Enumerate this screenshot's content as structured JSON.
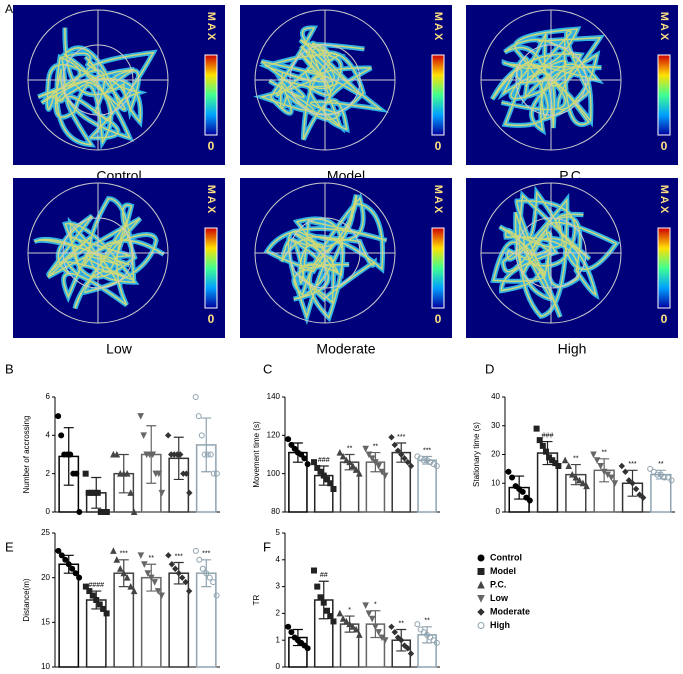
{
  "panel_labels": {
    "a": "A",
    "b": "B",
    "c": "C",
    "d": "D",
    "e": "E",
    "f": "F"
  },
  "heatmaps": {
    "labels": [
      "Control",
      "Model",
      "P.C.",
      "Low",
      "Moderate",
      "High"
    ],
    "colorbar": {
      "max": "MAX",
      "min": "0"
    }
  },
  "legend": {
    "items": [
      "Control",
      "Model",
      "P.C.",
      "Low",
      "Moderate",
      "High"
    ],
    "colors": [
      "#000000",
      "#222222",
      "#444444",
      "#666666",
      "#333333",
      "#8fa3b0"
    ]
  },
  "chart_data": [
    {
      "type": "bar",
      "ylabel": "Number of accrossing",
      "values": [
        2.9,
        1.0,
        2.0,
        3.0,
        2.8,
        3.5
      ],
      "errors": [
        1.5,
        0.8,
        1.0,
        1.5,
        1.1,
        1.4
      ],
      "points": [
        [
          5,
          4,
          3,
          3,
          3,
          2,
          2,
          0
        ],
        [
          2,
          1,
          1,
          1,
          1,
          0,
          0,
          0
        ],
        [
          3,
          3,
          2,
          2,
          2,
          1,
          0
        ],
        [
          5,
          4,
          3,
          3,
          3,
          2,
          2,
          1
        ],
        [
          4,
          3,
          3,
          3,
          3,
          2,
          2,
          1
        ],
        [
          6,
          5,
          4,
          3,
          3,
          3,
          2,
          2
        ]
      ],
      "ylim": [
        0,
        6
      ],
      "yticks": [
        0,
        2,
        4,
        6
      ]
    },
    {
      "type": "bar",
      "ylabel": "Movement time (s)",
      "values": [
        111,
        99,
        106,
        106,
        111,
        107
      ],
      "errors": [
        5,
        5,
        4,
        5,
        5,
        2
      ],
      "points": [
        [
          118,
          115,
          113,
          111,
          110,
          108,
          105
        ],
        [
          106,
          103,
          101,
          99,
          97,
          95,
          92
        ],
        [
          111,
          109,
          107,
          106,
          104,
          102,
          100
        ],
        [
          113,
          110,
          108,
          106,
          104,
          101,
          99
        ],
        [
          119,
          115,
          112,
          110,
          108,
          106,
          104
        ],
        [
          109,
          108,
          107,
          107,
          106,
          105,
          104
        ]
      ],
      "significance": [
        null,
        "###",
        "**",
        "**",
        "***",
        "***"
      ],
      "ylim": [
        80,
        140
      ],
      "yticks": [
        80,
        100,
        120,
        140
      ]
    },
    {
      "type": "bar",
      "ylabel": "Stationary time (s)",
      "values": [
        8.5,
        20.5,
        13,
        14.5,
        10,
        13
      ],
      "errors": [
        4,
        4,
        3.5,
        4,
        4.5,
        1.5
      ],
      "points": [
        [
          14,
          12,
          9,
          8,
          7,
          5,
          4
        ],
        [
          29,
          25,
          23,
          21,
          19,
          18,
          17,
          16
        ],
        [
          18,
          16,
          13,
          12,
          11,
          10,
          9
        ],
        [
          20,
          18,
          16,
          14,
          13,
          12,
          10
        ],
        [
          16,
          14,
          11,
          10,
          8,
          6,
          5
        ],
        [
          15,
          14,
          13,
          13,
          12,
          12,
          11
        ]
      ],
      "significance": [
        null,
        "###",
        "**",
        "**",
        "***",
        "**"
      ],
      "ylim": [
        0,
        40
      ],
      "yticks": [
        0,
        10,
        20,
        30,
        40
      ]
    },
    {
      "type": "bar",
      "ylabel": "Distance(m)",
      "values": [
        21.5,
        17.5,
        20.5,
        20,
        20.5,
        20.5
      ],
      "errors": [
        1,
        1,
        1.5,
        1.5,
        1.2,
        1.5
      ],
      "points": [
        [
          23,
          22.5,
          22,
          21.5,
          21,
          20.5,
          20
        ],
        [
          19,
          18.5,
          18,
          17.5,
          17,
          16.5,
          16
        ],
        [
          23,
          22,
          21,
          20.5,
          20,
          19,
          18.5
        ],
        [
          22.5,
          21.5,
          20.5,
          20,
          19.5,
          18.5,
          18
        ],
        [
          22.5,
          21.5,
          21,
          20.5,
          20,
          19.5,
          18.5
        ],
        [
          23,
          22,
          21,
          20.5,
          20,
          19.5,
          18
        ]
      ],
      "significance": [
        null,
        "####",
        "***",
        "**",
        "***",
        "***"
      ],
      "ylim": [
        10,
        25
      ],
      "yticks": [
        10,
        15,
        20,
        25
      ]
    },
    {
      "type": "bar",
      "ylabel": "TR",
      "values": [
        1.1,
        2.5,
        1.6,
        1.6,
        1.0,
        1.2
      ],
      "errors": [
        0.3,
        0.7,
        0.3,
        0.5,
        0.4,
        0.3
      ],
      "points": [
        [
          1.5,
          1.3,
          1.1,
          1.0,
          0.9,
          0.8,
          0.7
        ],
        [
          3.6,
          3.0,
          2.6,
          2.4,
          2.1,
          1.9,
          1.7
        ],
        [
          2.0,
          1.8,
          1.7,
          1.6,
          1.5,
          1.4,
          1.2
        ],
        [
          2.3,
          2.0,
          1.8,
          1.5,
          1.3,
          1.1,
          1.0
        ],
        [
          1.5,
          1.3,
          1.1,
          1.0,
          0.8,
          0.7,
          0.5
        ],
        [
          1.6,
          1.4,
          1.3,
          1.2,
          1.1,
          1.0,
          0.9
        ]
      ],
      "significance": [
        null,
        "##",
        "*",
        "*",
        "**",
        "**"
      ],
      "ylim": [
        0,
        5
      ],
      "yticks": [
        0,
        1,
        2,
        3,
        4,
        5
      ]
    }
  ]
}
